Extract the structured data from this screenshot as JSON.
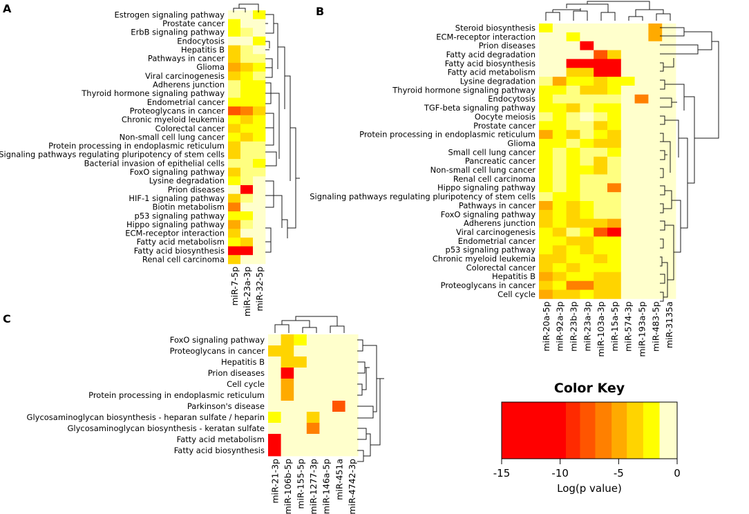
{
  "chart_data": [
    {
      "type": "heatmap",
      "panel": "A",
      "columns": [
        "miR-7-5p",
        "miR-23a-3p",
        "miR-32-5p"
      ],
      "rows": [
        "Estrogen signaling pathway",
        "Prostate cancer",
        "ErbB signaling pathway",
        "Endocytosis",
        "Hepatitis B",
        "Pathways in cancer",
        "Glioma",
        "Viral carcinogenesis",
        "Adherens junction",
        "Thyroid hormone signaling pathway",
        "Endometrial cancer",
        "Proteoglycans in cancer",
        "Chronic myeloid leukemia",
        "Colorectal cancer",
        "Non-small cell lung cancer",
        "Protein processing in endoplasmic reticulum",
        "Signaling pathways regulating pluripotency of stem cells",
        "Bacterial invasion of epithelial cells",
        "FoxO signaling pathway",
        "Lysine degradation",
        "Prion diseases",
        "HIF-1 signaling pathway",
        "Biotin metabolism",
        "p53 signaling pathway",
        "Hippo signaling pathway",
        "ECM-receptor interaction",
        "Fatty acid metabolism",
        "Fatty acid biosynthesis",
        "Renal cell carcinoma"
      ],
      "values": [
        [
          0,
          0,
          -2
        ],
        [
          -2,
          0,
          0
        ],
        [
          -2,
          -1,
          0
        ],
        [
          0,
          0,
          -2
        ],
        [
          -3,
          -1,
          0
        ],
        [
          -3,
          -1,
          -1
        ],
        [
          -5,
          -3,
          -2
        ],
        [
          -4,
          -2,
          -1
        ],
        [
          -1,
          -2,
          -2
        ],
        [
          -1,
          -2,
          -2
        ],
        [
          -2,
          -2,
          -2
        ],
        [
          -8,
          -7,
          -3
        ],
        [
          -2,
          -3,
          -2
        ],
        [
          -3,
          -2,
          -2
        ],
        [
          -2,
          -3,
          -2
        ],
        [
          -3,
          -1,
          -1
        ],
        [
          -3,
          -1,
          -1
        ],
        [
          -1,
          -1,
          -2
        ],
        [
          -3,
          -1,
          -1
        ],
        [
          -2,
          -1,
          0
        ],
        [
          0,
          -15,
          0
        ],
        [
          -3,
          -1,
          0
        ],
        [
          -7,
          0,
          0
        ],
        [
          -2,
          -2,
          0
        ],
        [
          -5,
          -1,
          0
        ],
        [
          -3,
          0,
          0
        ],
        [
          -2,
          -3,
          0
        ],
        [
          -13,
          -15,
          0
        ],
        [
          -3,
          0,
          0
        ]
      ]
    },
    {
      "type": "heatmap",
      "panel": "B",
      "columns": [
        "miR-20a-5p",
        "miR-92a-3p",
        "miR-23b-3p",
        "miR-23a-3p",
        "miR-103a-3p",
        "miR-15a-5p",
        "miR-574-3p",
        "miR-193a-5p",
        "miR-483-5p",
        "miR-3135a"
      ],
      "rows": [
        "Steroid biosynthesis",
        "ECM-receptor interaction",
        "Prion diseases",
        "Fatty acid degradation",
        "Fatty acid biosynthesis",
        "Fatty acid metabolism",
        "Lysine degradation",
        "Thyroid hormone signaling pathway",
        "Endocytosis",
        "TGF-beta signaling pathway",
        "Oocyte meiosis",
        "Prostate cancer",
        "Protein processing in endoplasmic reticulum",
        "Glioma",
        "Small cell lung cancer",
        "Pancreatic cancer",
        "Non-small cell lung cancer",
        "Renal cell carcinoma",
        "Hippo signaling pathway",
        "Signaling pathways regulating pluripotency of stem cells",
        "Pathways in cancer",
        "FoxO signaling pathway",
        "Adherens junction",
        "Viral carcinogenesis",
        "Endometrial cancer",
        "p53 signaling pathway",
        "Chronic myeloid leukemia",
        "Colorectal cancer",
        "Hepatitis B",
        "Proteoglycans in cancer",
        "Cell cycle"
      ],
      "values": [
        [
          -2,
          0,
          0,
          0,
          0,
          0,
          0,
          0,
          -5,
          0
        ],
        [
          0,
          0,
          -2,
          0,
          0,
          0,
          0,
          0,
          -5,
          0
        ],
        [
          0,
          0,
          0,
          -13,
          0,
          0,
          0,
          0,
          0,
          0
        ],
        [
          0,
          0,
          0,
          0,
          -8,
          -3,
          0,
          0,
          0,
          0
        ],
        [
          0,
          0,
          -13,
          -13,
          -15,
          -15,
          0,
          0,
          0,
          0
        ],
        [
          0,
          0,
          -4,
          -3,
          -15,
          -15,
          0,
          0,
          0,
          0
        ],
        [
          -1,
          -5,
          -2,
          -2,
          -3,
          -2,
          -2,
          0,
          0,
          0
        ],
        [
          -2,
          -2,
          -1,
          -3,
          -4,
          -2,
          0,
          0,
          0,
          0
        ],
        [
          -2,
          -1,
          -1,
          -1,
          -1,
          -1,
          0,
          -7,
          0,
          0
        ],
        [
          -2,
          -2,
          -3,
          -1,
          -2,
          -2,
          0,
          0,
          0,
          0
        ],
        [
          -1,
          -2,
          -1,
          0,
          -1,
          -2,
          0,
          0,
          0,
          0
        ],
        [
          -2,
          -2,
          -1,
          -1,
          -3,
          -2,
          0,
          0,
          0,
          0
        ],
        [
          -5,
          -2,
          -3,
          -1,
          -2,
          -3,
          0,
          0,
          0,
          0
        ],
        [
          -2,
          -2,
          -1,
          -2,
          -3,
          -3,
          0,
          0,
          0,
          0
        ],
        [
          -2,
          -1,
          -2,
          -1,
          -1,
          -2,
          0,
          0,
          0,
          0
        ],
        [
          -2,
          -1,
          -2,
          -1,
          -3,
          -1,
          0,
          0,
          0,
          0
        ],
        [
          -2,
          -1,
          -2,
          -2,
          -3,
          -1,
          0,
          0,
          0,
          0
        ],
        [
          -2,
          -1,
          -2,
          -1,
          -1,
          -1,
          0,
          0,
          0,
          0
        ],
        [
          -2,
          -1,
          -2,
          -1,
          -1,
          -7,
          0,
          0,
          0,
          0
        ],
        [
          -1,
          -2,
          -2,
          -1,
          -1,
          -1,
          0,
          0,
          0,
          0
        ],
        [
          -5,
          -2,
          -3,
          -2,
          -1,
          -1,
          0,
          0,
          0,
          0
        ],
        [
          -4,
          -2,
          -3,
          -2,
          -1,
          -1,
          0,
          0,
          0,
          0
        ],
        [
          -3,
          -2,
          -3,
          -4,
          -3,
          -5,
          0,
          0,
          0,
          0
        ],
        [
          -2,
          -3,
          -1,
          -2,
          -8,
          -10,
          0,
          0,
          0,
          0
        ],
        [
          -2,
          -2,
          -3,
          -3,
          -2,
          -2,
          0,
          0,
          0,
          0
        ],
        [
          -2,
          -3,
          -2,
          -3,
          -2,
          -2,
          0,
          0,
          0,
          0
        ],
        [
          -3,
          -3,
          -2,
          -2,
          -4,
          -2,
          0,
          0,
          0,
          0
        ],
        [
          -3,
          -2,
          -3,
          -2,
          -2,
          -2,
          0,
          0,
          0,
          0
        ],
        [
          -5,
          -3,
          -2,
          -2,
          -3,
          -3,
          0,
          0,
          0,
          0
        ],
        [
          -3,
          -2,
          -7,
          -7,
          -3,
          -4,
          0,
          0,
          0,
          0
        ],
        [
          -5,
          -3,
          -3,
          -2,
          -3,
          -3,
          0,
          0,
          0,
          0
        ]
      ]
    },
    {
      "type": "heatmap",
      "panel": "C",
      "columns": [
        "miR-21-3p",
        "miR-106b-5p",
        "miR-155-5p",
        "miR-1277-3p",
        "miR-146a-5p",
        "miR-451a",
        "miR-4742-3p"
      ],
      "rows": [
        "FoxO signaling pathway",
        "Proteoglycans in cancer",
        "Hepatitis B",
        "Prion diseases",
        "Cell cycle",
        "Protein processing in endoplasmic reticulum",
        "Parkinson's disease",
        "Glycosaminoglycan biosynthesis - heparan sulfate / heparin",
        "Glycosaminoglycan biosynthesis - keratan sulfate",
        "Fatty acid metabolism",
        "Fatty acid biosynthesis"
      ],
      "values": [
        [
          0,
          -3,
          -2,
          0,
          0,
          0,
          0
        ],
        [
          -3,
          -3,
          0,
          0,
          0,
          0,
          0
        ],
        [
          0,
          -3,
          -3,
          0,
          0,
          0,
          0
        ],
        [
          0,
          -15,
          0,
          0,
          0,
          0,
          0
        ],
        [
          0,
          -5,
          0,
          0,
          0,
          0,
          0
        ],
        [
          0,
          -5,
          0,
          0,
          0,
          0,
          0
        ],
        [
          0,
          0,
          0,
          0,
          0,
          -8,
          0
        ],
        [
          -2,
          0,
          0,
          -4,
          0,
          0,
          0
        ],
        [
          0,
          0,
          0,
          -7,
          0,
          0,
          0
        ],
        [
          -13,
          0,
          0,
          0,
          0,
          0,
          0
        ],
        [
          -13,
          0,
          0,
          0,
          0,
          0,
          0
        ]
      ]
    }
  ],
  "color_key": {
    "title": "Color Key",
    "xlabel": "Log(p value)",
    "range": [
      -15,
      0
    ],
    "ticks": [
      "-15",
      "-10",
      "-5",
      "0"
    ],
    "tick_values": [
      -15,
      -10,
      -5,
      0
    ],
    "breaks": [
      -15,
      -9.5,
      -8.3,
      -7,
      -5.6,
      -4.3,
      -2.9,
      -1.5,
      0
    ],
    "colors": [
      "#FF0000",
      "#FF2A00",
      "#FF5500",
      "#FF8000",
      "#FFAA00",
      "#FFD400",
      "#FFFF00",
      "#FFFF80"
    ],
    "background": "#FFFFCC"
  },
  "colors": {
    "background_cell": "#FFFFCC",
    "outline": "#000000"
  }
}
